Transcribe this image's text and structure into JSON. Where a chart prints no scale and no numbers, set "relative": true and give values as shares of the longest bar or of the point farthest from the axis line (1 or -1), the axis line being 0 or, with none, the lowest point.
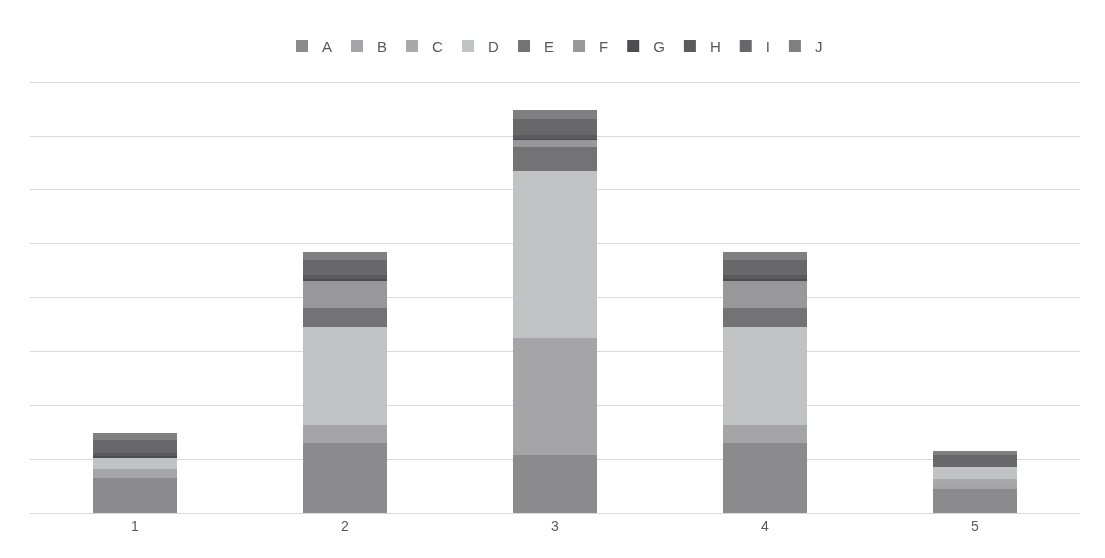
{
  "chart_data": {
    "type": "bar",
    "stacked": true,
    "relative": true,
    "grid": "y",
    "legend": "top",
    "categories": [
      "1",
      "2",
      "3",
      "4",
      "5"
    ],
    "series": [
      {
        "name": "A",
        "color": "#8b8b8e",
        "values": [
          0.086,
          0.175,
          0.143,
          0.175,
          0.059
        ]
      },
      {
        "name": "B",
        "color": "#a5a5a7",
        "values": [
          0.024,
          0.043,
          0.291,
          0.043,
          0.014
        ]
      },
      {
        "name": "C",
        "color": "#a9a9ab",
        "values": [
          0,
          0,
          0,
          0,
          0.011
        ]
      },
      {
        "name": "D",
        "color": "#c1c2c4",
        "values": [
          0.027,
          0.245,
          0.415,
          0.245,
          0.031
        ]
      },
      {
        "name": "E",
        "color": "#737375",
        "values": [
          0,
          0.046,
          0.059,
          0.046,
          0
        ]
      },
      {
        "name": "F",
        "color": "#98989a",
        "values": [
          0,
          0.068,
          0.018,
          0.068,
          0
        ]
      },
      {
        "name": "G",
        "color": "#4d4d4f",
        "values": [
          0.005,
          0.005,
          0.003,
          0.005,
          0
        ]
      },
      {
        "name": "H",
        "color": "#5b5b5d",
        "values": [
          0.006,
          0.01,
          0.01,
          0.01,
          0
        ]
      },
      {
        "name": "I",
        "color": "#68686a",
        "values": [
          0.034,
          0.035,
          0.038,
          0.035,
          0.03
        ]
      },
      {
        "name": "J",
        "color": "#808082",
        "values": [
          0.016,
          0.02,
          0.023,
          0.02,
          0.009
        ]
      }
    ]
  }
}
